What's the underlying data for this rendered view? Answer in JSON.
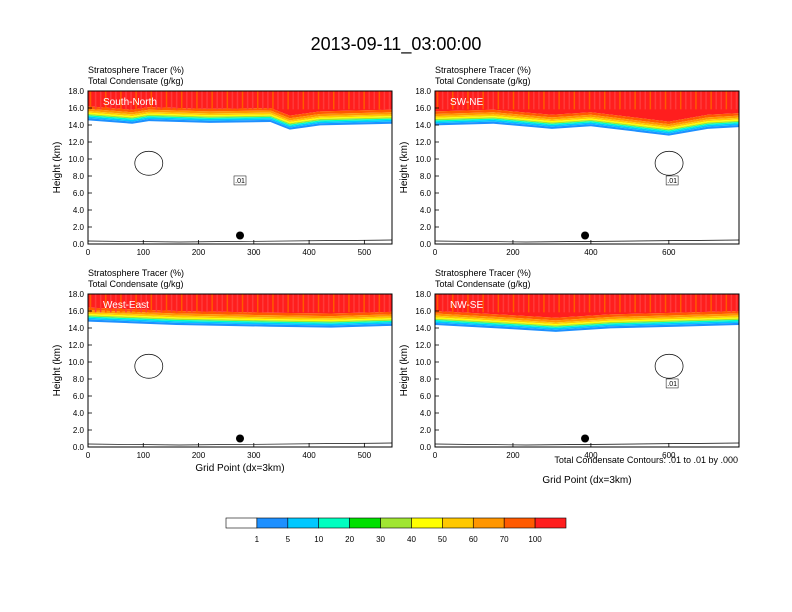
{
  "title": "2013-09-11_03:00:00",
  "subtitle_left": "Stratosphere Tracer   (%)",
  "subtitle_left2": "Total Condensate   (g/kg)",
  "footnote": "Total Condensate Contours: .01 to .01 by .000",
  "xlabel": "Grid Point (dx=3km)",
  "ylabel": "Height (km)",
  "colorbar": {
    "labels": [
      "1",
      "5",
      "10",
      "20",
      "30",
      "40",
      "50",
      "60",
      "70",
      "100"
    ],
    "colors": [
      "#ffffff",
      "#1e90ff",
      "#00c8ff",
      "#00ffc0",
      "#00e000",
      "#a0e632",
      "#ffff00",
      "#ffc800",
      "#ff9600",
      "#ff5a00",
      "#ff1e1e"
    ]
  },
  "chart_data": [
    {
      "type": "heatmap",
      "panel": "South-North",
      "xlim": [
        0,
        550
      ],
      "ylim": [
        0,
        18
      ],
      "xticks": [
        0,
        100,
        200,
        300,
        400,
        500
      ],
      "yticks": [
        "0.0",
        "2.0",
        "4.0",
        "6.0",
        "8.0",
        "10.0",
        "12.0",
        "14.0",
        "16.0",
        "18.0"
      ],
      "tropopause_km": [
        [
          0,
          15.0
        ],
        [
          80,
          14.6
        ],
        [
          110,
          14.9
        ],
        [
          220,
          14.7
        ],
        [
          330,
          14.8
        ],
        [
          365,
          13.9
        ],
        [
          420,
          14.4
        ],
        [
          550,
          14.6
        ]
      ],
      "contour_label": ".01",
      "marker": {
        "x": 275,
        "y": 1.0
      }
    },
    {
      "type": "heatmap",
      "panel": "SW-NE",
      "xlim": [
        0,
        780
      ],
      "ylim": [
        0,
        18
      ],
      "xticks": [
        0,
        200,
        400,
        600
      ],
      "yticks": [
        "0.0",
        "2.0",
        "4.0",
        "6.0",
        "8.0",
        "10.0",
        "12.0",
        "14.0",
        "16.0",
        "18.0"
      ],
      "tropopause_km": [
        [
          0,
          14.4
        ],
        [
          150,
          14.6
        ],
        [
          300,
          14.0
        ],
        [
          400,
          14.3
        ],
        [
          600,
          13.2
        ],
        [
          700,
          14.0
        ],
        [
          780,
          14.2
        ]
      ],
      "contour_label": ".01",
      "marker": {
        "x": 385,
        "y": 1.0
      }
    },
    {
      "type": "heatmap",
      "panel": "West-East",
      "xlim": [
        0,
        550
      ],
      "ylim": [
        0,
        18
      ],
      "xticks": [
        0,
        100,
        200,
        300,
        400,
        500
      ],
      "yticks": [
        "0.0",
        "2.0",
        "4.0",
        "6.0",
        "8.0",
        "10.0",
        "12.0",
        "14.0",
        "16.0",
        "18.0"
      ],
      "tropopause_km": [
        [
          0,
          15.2
        ],
        [
          160,
          14.8
        ],
        [
          330,
          14.6
        ],
        [
          440,
          14.5
        ],
        [
          550,
          14.7
        ]
      ],
      "contour_label": "",
      "marker": {
        "x": 275,
        "y": 1.0
      }
    },
    {
      "type": "heatmap",
      "panel": "NW-SE",
      "xlim": [
        0,
        780
      ],
      "ylim": [
        0,
        18
      ],
      "xticks": [
        0,
        200,
        400,
        600
      ],
      "yticks": [
        "0.0",
        "2.0",
        "4.0",
        "6.0",
        "8.0",
        "10.0",
        "12.0",
        "14.0",
        "16.0",
        "18.0"
      ],
      "tropopause_km": [
        [
          0,
          14.8
        ],
        [
          200,
          14.3
        ],
        [
          310,
          14.0
        ],
        [
          450,
          14.4
        ],
        [
          620,
          14.6
        ],
        [
          780,
          14.8
        ]
      ],
      "contour_label": ".01",
      "marker": {
        "x": 385,
        "y": 1.0
      }
    }
  ]
}
